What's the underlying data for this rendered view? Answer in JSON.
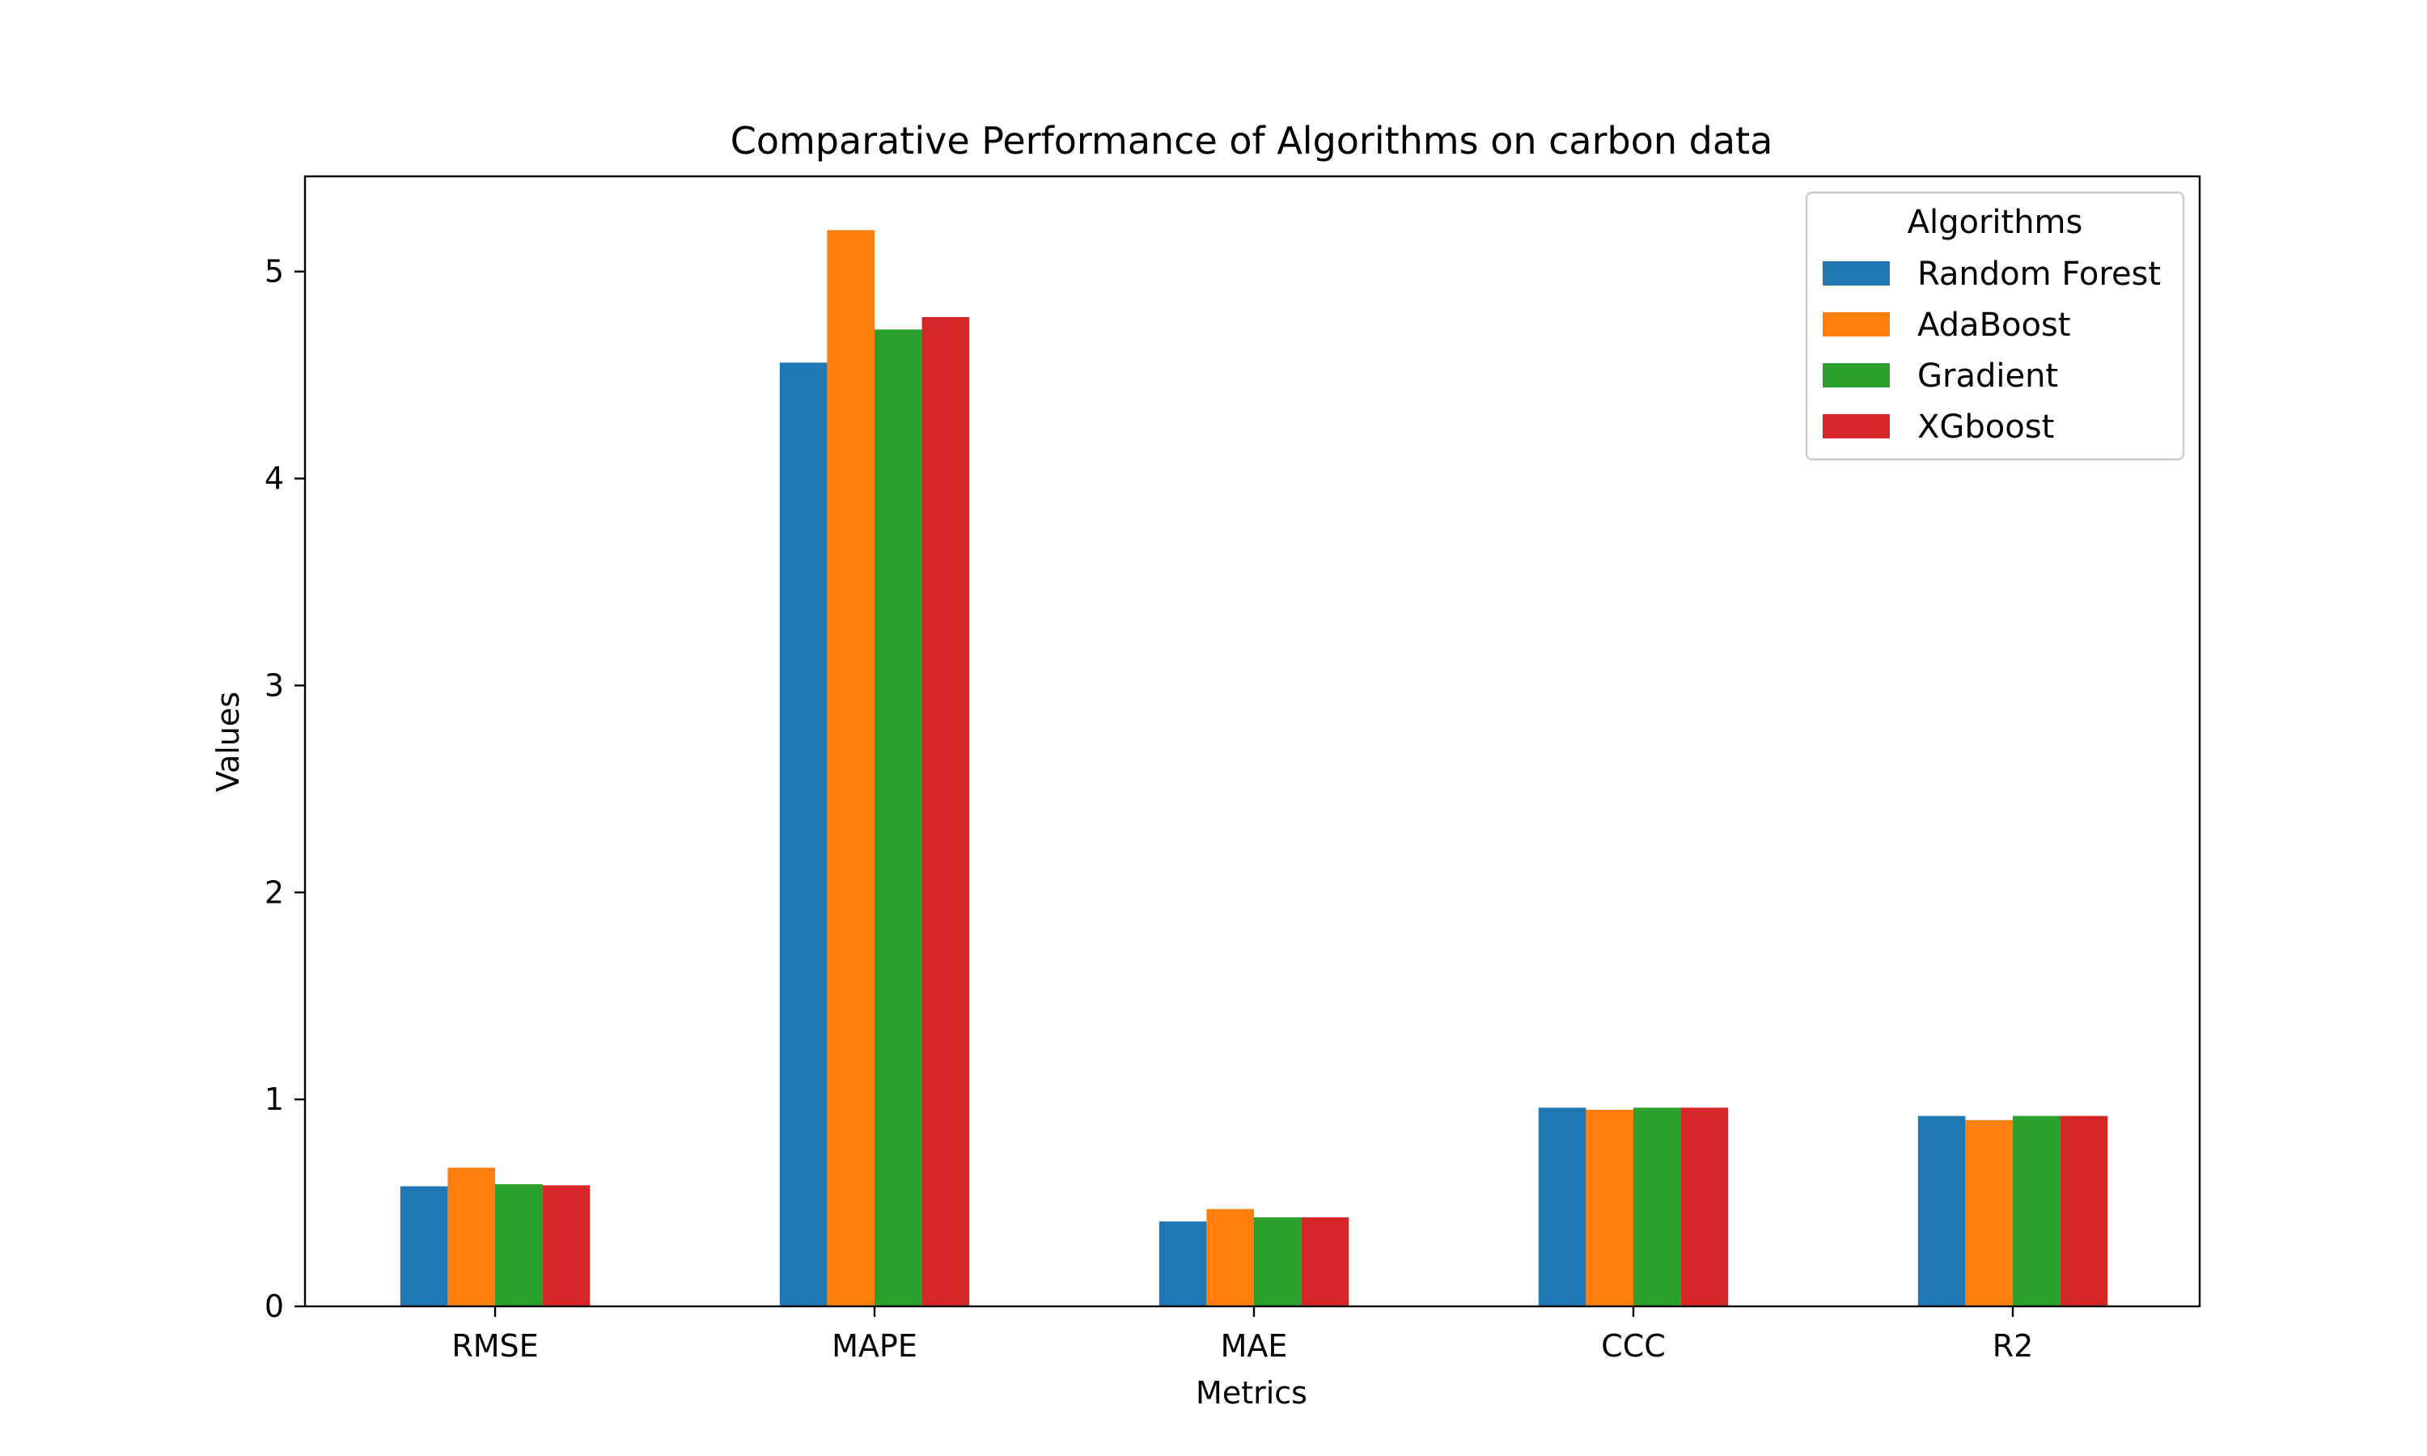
{
  "chart_data": {
    "type": "bar",
    "title": "Comparative Performance of Algorithms on carbon data",
    "xlabel": "Metrics",
    "ylabel": "Values",
    "categories": [
      "RMSE",
      "MAPE",
      "MAE",
      "CCC",
      "R2"
    ],
    "ylim": [
      0,
      5.46
    ],
    "yticks": [
      0,
      1,
      2,
      3,
      4,
      5
    ],
    "grid": false,
    "legend": {
      "title": "Algorithms",
      "placement": "top-right"
    },
    "series": [
      {
        "name": "Random Forest",
        "color": "#1f77b4",
        "values": [
          0.58,
          4.56,
          0.41,
          0.96,
          0.92
        ]
      },
      {
        "name": "AdaBoost",
        "color": "#ff7f0e",
        "values": [
          0.67,
          5.2,
          0.47,
          0.95,
          0.9
        ]
      },
      {
        "name": "Gradient",
        "color": "#2ca02c",
        "values": [
          0.59,
          4.72,
          0.43,
          0.96,
          0.92
        ]
      },
      {
        "name": "XGboost",
        "color": "#d62728",
        "values": [
          0.585,
          4.78,
          0.43,
          0.96,
          0.92
        ]
      }
    ]
  }
}
